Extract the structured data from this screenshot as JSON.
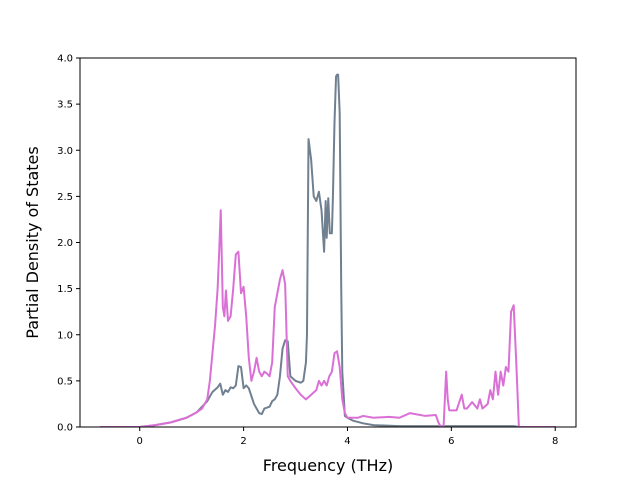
{
  "chart_data": {
    "type": "line",
    "title": "",
    "xlabel": "Frequency (THz)",
    "ylabel": "Partial Density of States",
    "xlim": [
      -1.15,
      8.4
    ],
    "ylim": [
      0,
      4.0
    ],
    "xticks": [
      0,
      2,
      4,
      6,
      8
    ],
    "yticks": [
      0.0,
      0.5,
      1.0,
      1.5,
      2.0,
      2.5,
      3.0,
      3.5,
      4.0
    ],
    "xtick_labels": [
      "0",
      "2",
      "4",
      "6",
      "8"
    ],
    "ytick_labels": [
      "0.0",
      "0.5",
      "1.0",
      "1.5",
      "2.0",
      "2.5",
      "3.0",
      "3.5",
      "4.0"
    ],
    "grid": false,
    "legend": null,
    "series": [
      {
        "color": "#708090",
        "x": [
          -0.75,
          0.0,
          0.3,
          0.6,
          0.9,
          1.1,
          1.3,
          1.4,
          1.5,
          1.55,
          1.6,
          1.65,
          1.7,
          1.75,
          1.8,
          1.85,
          1.9,
          1.95,
          2.0,
          2.05,
          2.1,
          2.2,
          2.3,
          2.35,
          2.4,
          2.5,
          2.55,
          2.6,
          2.65,
          2.7,
          2.75,
          2.8,
          2.85,
          2.9,
          3.0,
          3.1,
          3.15,
          3.2,
          3.22,
          3.25,
          3.3,
          3.35,
          3.4,
          3.45,
          3.5,
          3.55,
          3.58,
          3.6,
          3.63,
          3.66,
          3.7,
          3.72,
          3.75,
          3.78,
          3.8,
          3.82,
          3.85,
          3.88,
          3.9,
          3.95,
          4.0,
          4.1,
          4.3,
          4.5,
          5.0,
          5.5,
          5.8,
          6.0,
          6.5,
          7.0,
          7.2,
          7.3,
          8.0
        ],
        "y": [
          0.0,
          0.0,
          0.02,
          0.05,
          0.1,
          0.16,
          0.28,
          0.38,
          0.43,
          0.47,
          0.35,
          0.4,
          0.38,
          0.43,
          0.42,
          0.45,
          0.66,
          0.65,
          0.42,
          0.45,
          0.42,
          0.25,
          0.15,
          0.14,
          0.2,
          0.22,
          0.28,
          0.3,
          0.35,
          0.55,
          0.85,
          0.94,
          0.93,
          0.55,
          0.5,
          0.48,
          0.5,
          0.7,
          1.0,
          3.12,
          2.9,
          2.5,
          2.45,
          2.55,
          2.35,
          1.9,
          2.45,
          2.05,
          2.48,
          2.1,
          2.1,
          2.5,
          3.3,
          3.8,
          3.82,
          3.82,
          3.4,
          1.5,
          0.6,
          0.12,
          0.1,
          0.07,
          0.04,
          0.02,
          0.01,
          0.01,
          0.01,
          0.01,
          0.01,
          0.01,
          0.01,
          0.0,
          0.0
        ]
      },
      {
        "color": "#DA70D6",
        "x": [
          -0.75,
          0.0,
          0.3,
          0.6,
          0.9,
          1.1,
          1.2,
          1.3,
          1.35,
          1.4,
          1.45,
          1.5,
          1.53,
          1.56,
          1.6,
          1.63,
          1.66,
          1.7,
          1.75,
          1.8,
          1.85,
          1.9,
          1.95,
          2.0,
          2.05,
          2.1,
          2.15,
          2.2,
          2.25,
          2.3,
          2.35,
          2.4,
          2.45,
          2.5,
          2.55,
          2.6,
          2.65,
          2.7,
          2.75,
          2.8,
          2.85,
          2.9,
          3.0,
          3.1,
          3.2,
          3.3,
          3.4,
          3.45,
          3.5,
          3.55,
          3.6,
          3.65,
          3.7,
          3.75,
          3.8,
          3.85,
          3.9,
          3.95,
          4.0,
          4.1,
          4.2,
          4.3,
          4.5,
          4.8,
          5.0,
          5.2,
          5.5,
          5.7,
          5.75,
          5.8,
          5.85,
          5.9,
          5.93,
          5.96,
          6.0,
          6.05,
          6.1,
          6.2,
          6.25,
          6.3,
          6.4,
          6.5,
          6.55,
          6.6,
          6.7,
          6.75,
          6.8,
          6.85,
          6.9,
          6.95,
          7.0,
          7.05,
          7.1,
          7.15,
          7.2,
          7.25,
          7.3,
          8.0
        ],
        "y": [
          0.0,
          0.0,
          0.02,
          0.05,
          0.1,
          0.16,
          0.2,
          0.3,
          0.5,
          0.8,
          1.1,
          1.5,
          1.9,
          2.35,
          1.3,
          1.2,
          1.48,
          1.15,
          1.2,
          1.5,
          1.87,
          1.9,
          1.45,
          1.52,
          1.2,
          0.75,
          0.5,
          0.6,
          0.75,
          0.6,
          0.55,
          0.6,
          0.58,
          0.55,
          0.7,
          1.3,
          1.45,
          1.6,
          1.7,
          1.55,
          0.55,
          0.5,
          0.42,
          0.35,
          0.3,
          0.35,
          0.4,
          0.5,
          0.45,
          0.5,
          0.45,
          0.55,
          0.6,
          0.8,
          0.82,
          0.65,
          0.3,
          0.15,
          0.1,
          0.1,
          0.1,
          0.12,
          0.1,
          0.11,
          0.1,
          0.15,
          0.12,
          0.13,
          0.05,
          0.0,
          0.0,
          0.6,
          0.3,
          0.18,
          0.18,
          0.18,
          0.18,
          0.35,
          0.2,
          0.2,
          0.27,
          0.2,
          0.3,
          0.2,
          0.25,
          0.4,
          0.3,
          0.6,
          0.35,
          0.6,
          0.45,
          0.65,
          0.6,
          1.25,
          1.32,
          0.7,
          0.0,
          0.0
        ]
      }
    ]
  }
}
